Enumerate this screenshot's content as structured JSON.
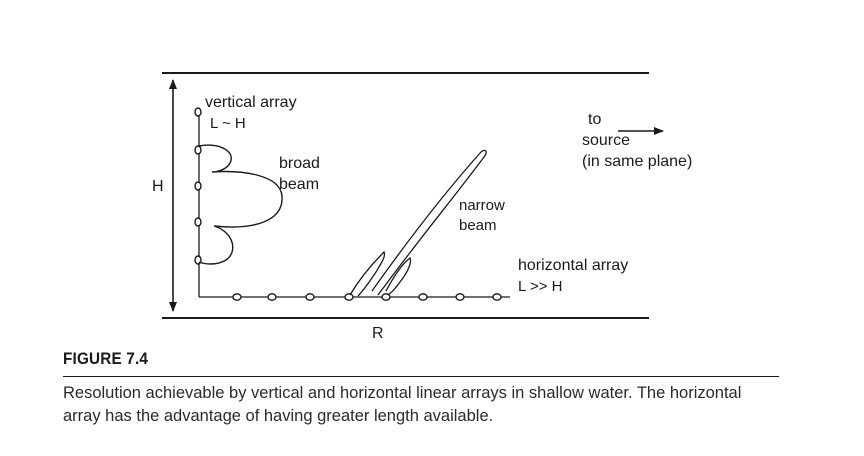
{
  "diagram": {
    "labels": {
      "vertical_array": "vertical array",
      "vertical_relation": "L ~ H",
      "broad_beam": [
        "broad",
        "beam"
      ],
      "narrow_beam": [
        "narrow",
        "beam"
      ],
      "to_source": [
        "to",
        "source",
        "(in same plane)"
      ],
      "horizontal_array": "horizontal array",
      "horizontal_relation": "L >> H",
      "depth": "H",
      "range": "R"
    }
  },
  "caption": {
    "title": "FIGURE 7.4",
    "text": "Resolution achievable by vertical and horizontal linear arrays in shallow water. The horizontal array has the advantage of having greater length available."
  }
}
